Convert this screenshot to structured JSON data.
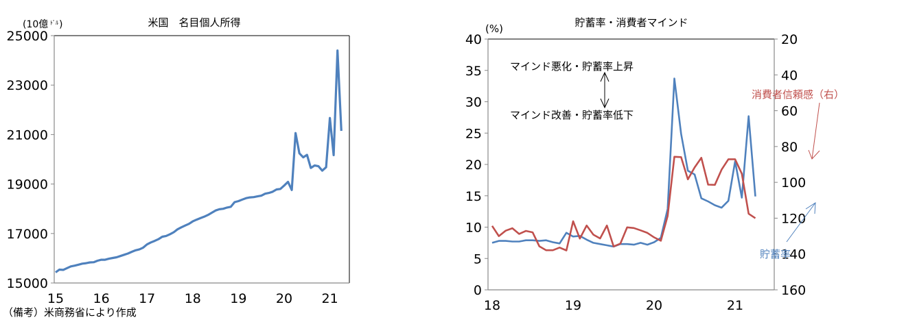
{
  "chart_data": [
    {
      "type": "line",
      "title": "米国　名目個人所得",
      "ylabel": "(10億ドル)",
      "xlabel": "",
      "ylim": [
        15000,
        25000
      ],
      "yticks": [
        "25000",
        "23000",
        "21000",
        "19000",
        "17000",
        "15000"
      ],
      "xticks": [
        "15",
        "16",
        "17",
        "18",
        "19",
        "20",
        "21"
      ],
      "note": "（備考）米商務省により作成",
      "grid": false,
      "series": [
        {
          "name": "名目個人所得",
          "color": "#4F81BD",
          "x_start": "2015-01",
          "frequency": "monthly",
          "values": [
            15430,
            15540,
            15530,
            15600,
            15670,
            15700,
            15740,
            15780,
            15800,
            15830,
            15840,
            15900,
            15940,
            15940,
            15980,
            16010,
            16040,
            16090,
            16140,
            16190,
            16260,
            16320,
            16360,
            16430,
            16560,
            16640,
            16700,
            16770,
            16870,
            16900,
            16970,
            17050,
            17170,
            17250,
            17320,
            17390,
            17490,
            17560,
            17620,
            17680,
            17750,
            17840,
            17930,
            17980,
            18000,
            18050,
            18080,
            18270,
            18310,
            18370,
            18430,
            18460,
            18470,
            18500,
            18530,
            18610,
            18640,
            18690,
            18780,
            18800,
            18940,
            19090,
            18760,
            21060,
            20240,
            20080,
            20180,
            19650,
            19750,
            19720,
            19540,
            19680,
            21670,
            20170,
            24400,
            21150
          ]
        }
      ]
    },
    {
      "type": "line",
      "title": "貯蓄率・消費者マインド",
      "ylabel": "(%)",
      "y2label": "",
      "ylim": [
        0,
        40
      ],
      "y2lim": [
        160,
        20
      ],
      "y2_inverted": true,
      "yticks": [
        "40",
        "35",
        "30",
        "25",
        "20",
        "15",
        "10",
        "5",
        "0"
      ],
      "y2ticks": [
        "20",
        "40",
        "60",
        "80",
        "100",
        "120",
        "140",
        "160"
      ],
      "xticks": [
        "18",
        "19",
        "20",
        "21"
      ],
      "grid": false,
      "annotations": [
        "マインド悪化・貯蓄率上昇",
        "マインド改善・貯蓄率低下",
        "消費者信頼感（右）",
        "貯蓄率"
      ],
      "series": [
        {
          "name": "貯蓄率",
          "axis": "left",
          "color": "#4F81BD",
          "x_start": "2018-01",
          "frequency": "monthly",
          "values": [
            7.5,
            7.8,
            7.8,
            7.7,
            7.7,
            7.9,
            7.9,
            7.8,
            7.9,
            7.6,
            7.4,
            9.1,
            8.5,
            8.6,
            8.0,
            7.5,
            7.3,
            7.1,
            6.9,
            7.3,
            7.3,
            7.2,
            7.5,
            7.2,
            7.6,
            8.3,
            12.9,
            33.7,
            24.9,
            19.0,
            18.4,
            14.6,
            14.1,
            13.5,
            13.1,
            14.2,
            20.5,
            14.7,
            27.7,
            14.9
          ]
        },
        {
          "name": "消費者信頼感（右）",
          "axis": "right",
          "color": "#C0504D",
          "x_start": "2018-01",
          "frequency": "monthly",
          "values": [
            124.3,
            130.0,
            127.0,
            125.6,
            128.8,
            127.1,
            127.9,
            135.7,
            137.9,
            137.9,
            136.4,
            138.0,
            121.7,
            131.4,
            124.1,
            129.2,
            131.3,
            124.1,
            135.8,
            134.2,
            125.1,
            125.5,
            126.8,
            128.2,
            130.7,
            132.6,
            118.8,
            85.7,
            85.9,
            98.3,
            91.7,
            86.3,
            101.3,
            101.4,
            92.9,
            87.1,
            87.1,
            95.2,
            117.5,
            120.0
          ]
        }
      ]
    }
  ],
  "left_chart": {
    "title": "米国　名目個人所得",
    "unit_label": "(10億",
    "unit_small": "ﾄﾞﾙ",
    "unit_close": ")",
    "note": "（備考）米商務省により作成",
    "yticks": [
      "25000",
      "23000",
      "21000",
      "19000",
      "17000",
      "15000"
    ],
    "xticks": [
      "15",
      "16",
      "17",
      "18",
      "19",
      "20",
      "21"
    ],
    "line_color": "#4F81BD"
  },
  "right_chart": {
    "title": "貯蓄率・消費者マインド",
    "unit_label": "(%)",
    "yticks": [
      "40",
      "35",
      "30",
      "25",
      "20",
      "15",
      "10",
      "5",
      "0"
    ],
    "y2ticks": [
      "20",
      "40",
      "60",
      "80",
      "100",
      "120",
      "140",
      "160"
    ],
    "xticks": [
      "18",
      "19",
      "20",
      "21"
    ],
    "annotation_top": "マインド悪化・貯蓄率上昇",
    "annotation_bottom": "マインド改善・貯蓄率低下",
    "label_confidence": "消費者信頼感（右）",
    "label_saving": "貯蓄率",
    "saving_color": "#4F81BD",
    "confidence_color": "#C0504D"
  }
}
